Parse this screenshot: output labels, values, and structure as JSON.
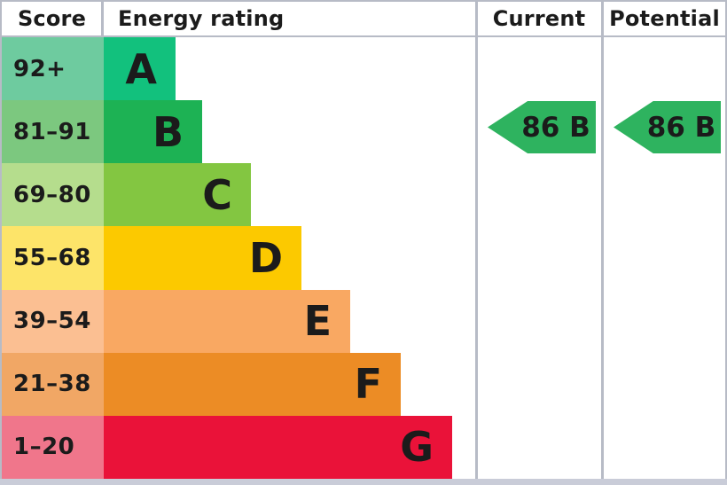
{
  "header": {
    "score_label": "Score",
    "energy_rating_label": "Energy rating",
    "current_label": "Current",
    "potential_label": "Potential"
  },
  "chart_data": {
    "type": "bar",
    "title": "Energy rating (EPC band chart)",
    "legend_position": "none",
    "axis": "score bands listed top (best) to bottom (worst); bar length increases from band A to G",
    "bands": [
      {
        "score": "92+",
        "letter": "A",
        "bar_len": 81,
        "score_bg": "#6ecb9f",
        "bar_color": "#12c17d"
      },
      {
        "score": "81–91",
        "letter": "B",
        "bar_len": 111,
        "score_bg": "#7cc87f",
        "bar_color": "#1db254"
      },
      {
        "score": "69–80",
        "letter": "C",
        "bar_len": 166,
        "score_bg": "#b5dd8d",
        "bar_color": "#83c641"
      },
      {
        "score": "55–68",
        "letter": "D",
        "bar_len": 223,
        "score_bg": "#fde469",
        "bar_color": "#fcc900"
      },
      {
        "score": "39–54",
        "letter": "E",
        "bar_len": 278,
        "score_bg": "#fbbf92",
        "bar_color": "#f9a862"
      },
      {
        "score": "21–38",
        "letter": "F",
        "bar_len": 335,
        "score_bg": "#f1a765",
        "bar_color": "#ec8c25"
      },
      {
        "score": "1–20",
        "letter": "G",
        "bar_len": 393,
        "score_bg": "#f0768b",
        "bar_color": "#ea1239"
      }
    ],
    "markers": {
      "current": {
        "label": "86 B",
        "value": 86,
        "band": "B",
        "color": "#2eb35f"
      },
      "potential": {
        "label": "86 B",
        "value": 86,
        "band": "B",
        "color": "#2eb35f"
      }
    }
  }
}
